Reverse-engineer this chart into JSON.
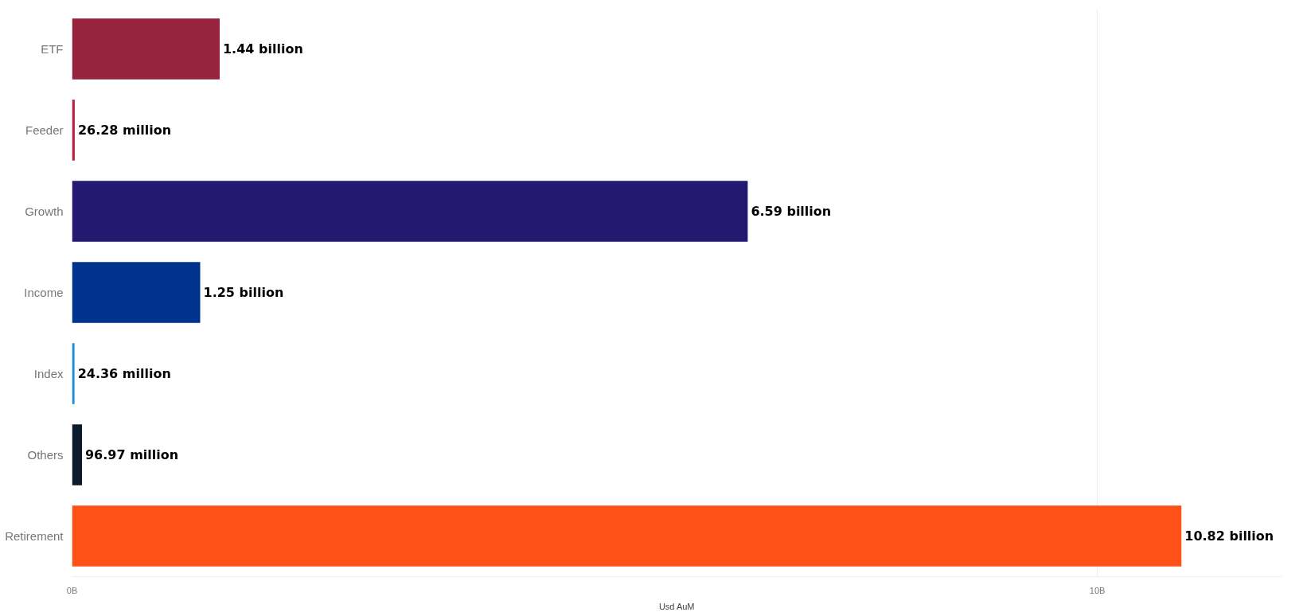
{
  "chart_data": {
    "type": "bar",
    "orientation": "horizontal",
    "xlabel": "Usd AuM",
    "categories": [
      "ETF",
      "Feeder",
      "Growth",
      "Income",
      "Index",
      "Others",
      "Retirement"
    ],
    "values": [
      1440000000,
      26280000,
      6590000000,
      1250000000,
      24360000,
      96970000,
      10820000000
    ],
    "colors": [
      "#97233f",
      "#b5243c",
      "#231970",
      "#00338d",
      "#1e8fd5",
      "#0c1a2e",
      "#fd5117"
    ],
    "value_labels": [
      "1.44 billion",
      "26.28 million",
      "6.59 billion",
      "1.25 billion",
      "24.36 million",
      "96.97 million",
      "10.82 billion"
    ],
    "xlim": [
      0,
      11800000000
    ],
    "xticks": [
      {
        "value": 0,
        "label": "0B"
      },
      {
        "value": 10000000000,
        "label": "10B"
      }
    ],
    "grid": "x"
  }
}
